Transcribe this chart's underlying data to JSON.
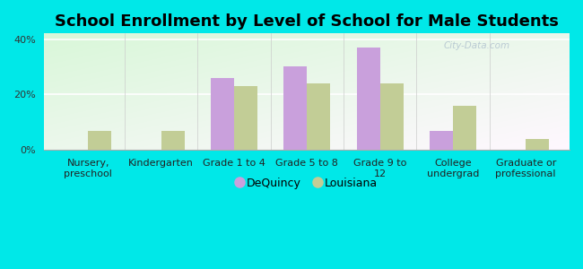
{
  "title": "School Enrollment by Level of School for Male Students",
  "categories": [
    "Nursery,\npreschool",
    "Kindergarten",
    "Grade 1 to 4",
    "Grade 5 to 8",
    "Grade 9 to\n12",
    "College\nundergrad",
    "Graduate or\nprofessional"
  ],
  "dequincy": [
    0,
    0,
    26,
    30,
    37,
    7,
    0
  ],
  "louisiana": [
    7,
    7,
    23,
    24,
    24,
    16,
    4
  ],
  "dequincy_color": "#c9a0dc",
  "louisiana_color": "#c2cd96",
  "background_color": "#00e8e8",
  "ylim": [
    0,
    42
  ],
  "yticks": [
    0,
    20,
    40
  ],
  "ytick_labels": [
    "0%",
    "20%",
    "40%"
  ],
  "bar_width": 0.32,
  "legend_labels": [
    "DeQuincy",
    "Louisiana"
  ],
  "watermark": "City-Data.com",
  "title_fontsize": 13,
  "tick_fontsize": 8,
  "legend_fontsize": 9
}
